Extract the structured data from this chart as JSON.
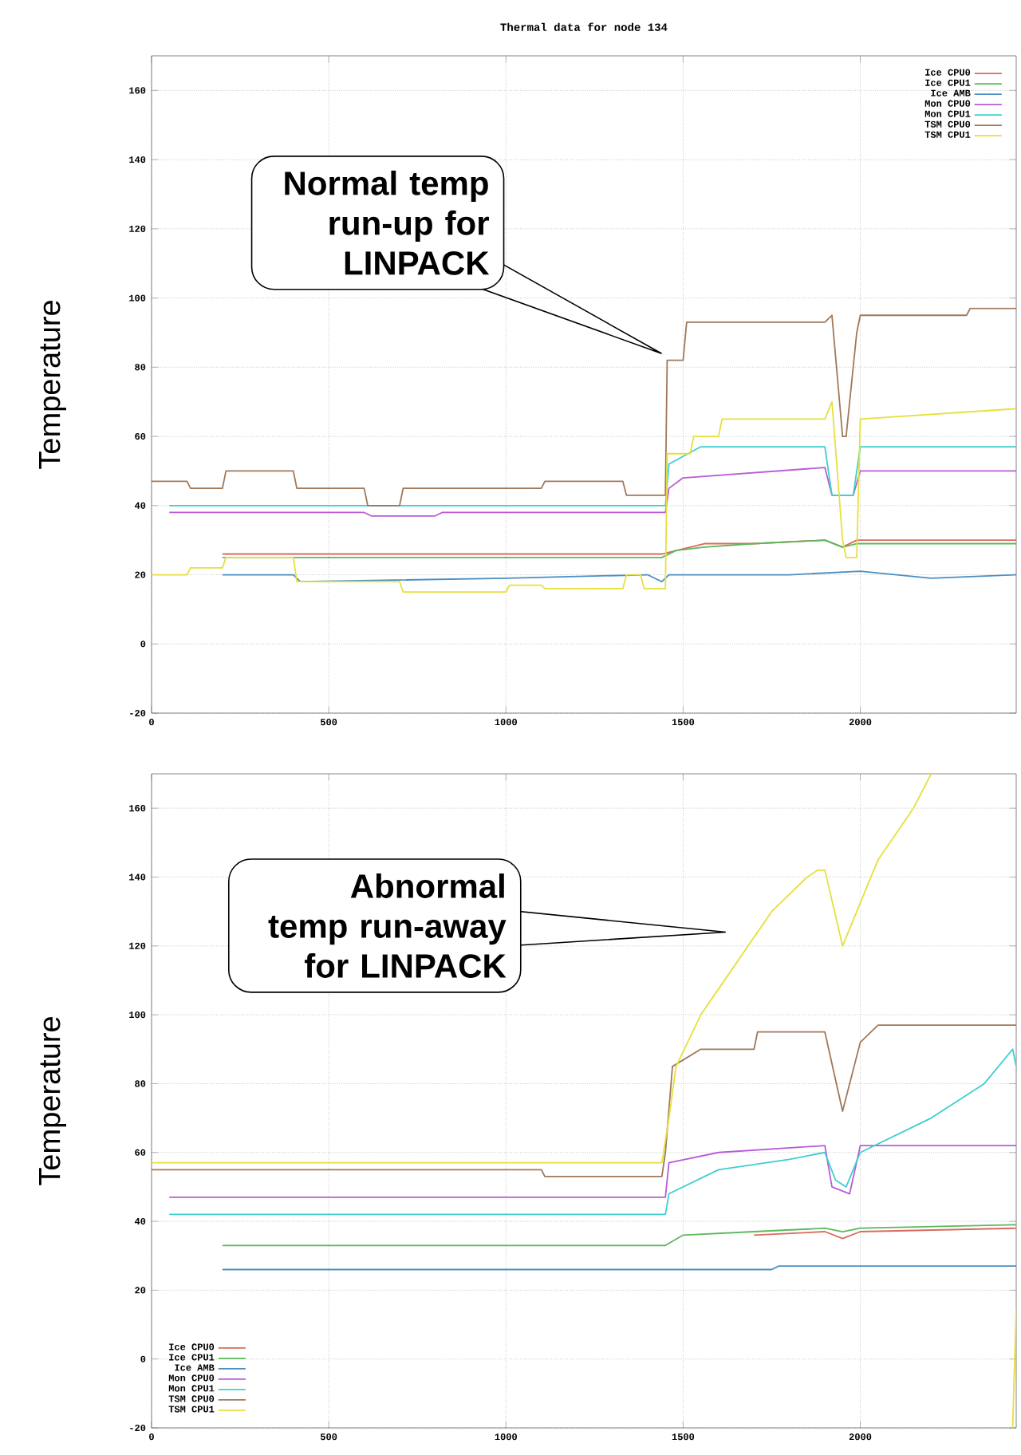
{
  "chart_data": [
    {
      "type": "line",
      "title": "Thermal data for node 134",
      "ylabel": "Temperature",
      "xlim": [
        0,
        2440
      ],
      "ylim": [
        -20,
        170
      ],
      "xticks": [
        0,
        500,
        1000,
        1500,
        2000
      ],
      "yticks": [
        -20,
        0,
        20,
        40,
        60,
        80,
        100,
        120,
        140,
        160
      ],
      "grid": true,
      "legend": "top right",
      "annotations": [
        "Normal temp run-up for LINPACK"
      ],
      "series": [
        {
          "name": "Ice CPU0",
          "color": "#d96a5a",
          "x": [
            200,
            600,
            1000,
            1440,
            1480,
            1560,
            1700,
            1900,
            1950,
            1990,
            2200,
            2440
          ],
          "values": [
            26,
            26,
            26,
            26,
            27,
            29,
            29,
            30,
            28,
            30,
            30,
            30
          ]
        },
        {
          "name": "Ice CPU1",
          "color": "#5cb85c",
          "x": [
            200,
            600,
            1000,
            1440,
            1480,
            1560,
            1700,
            1900,
            1950,
            1990,
            2200,
            2440
          ],
          "values": [
            25,
            25,
            25,
            25,
            27,
            28,
            29,
            30,
            28,
            29,
            29,
            29
          ]
        },
        {
          "name": "Ice AMB",
          "color": "#4a8fc4",
          "x": [
            200,
            400,
            420,
            1000,
            1400,
            1440,
            1460,
            1500,
            1800,
            2000,
            2200,
            2440
          ],
          "values": [
            20,
            20,
            18,
            19,
            20,
            18,
            20,
            20,
            20,
            21,
            19,
            20
          ]
        },
        {
          "name": "Mon CPU0",
          "color": "#b85cd6",
          "x": [
            50,
            600,
            620,
            800,
            820,
            1450,
            1460,
            1500,
            1900,
            1920,
            1980,
            2000,
            2440
          ],
          "values": [
            38,
            38,
            37,
            37,
            38,
            38,
            45,
            48,
            51,
            43,
            43,
            50,
            50
          ]
        },
        {
          "name": "Mon CPU1",
          "color": "#3dcfcf",
          "x": [
            50,
            1450,
            1460,
            1550,
            1900,
            1920,
            1980,
            2000,
            2440
          ],
          "values": [
            40,
            40,
            52,
            57,
            57,
            43,
            43,
            57,
            57
          ]
        },
        {
          "name": "TSM CPU0",
          "color": "#a0785a",
          "x": [
            0,
            100,
            110,
            200,
            210,
            400,
            410,
            600,
            610,
            700,
            710,
            1100,
            1110,
            1330,
            1340,
            1450,
            1455,
            1500,
            1510,
            1900,
            1920,
            1950,
            1960,
            1990,
            2000,
            2300,
            2310,
            2440
          ],
          "values": [
            47,
            47,
            45,
            45,
            50,
            50,
            45,
            45,
            40,
            40,
            45,
            45,
            47,
            47,
            43,
            43,
            82,
            82,
            93,
            93,
            95,
            60,
            60,
            90,
            95,
            95,
            97,
            97
          ]
        },
        {
          "name": "TSM CPU1",
          "color": "#e6e03c",
          "x": [
            0,
            100,
            110,
            200,
            210,
            400,
            410,
            700,
            710,
            1000,
            1010,
            1100,
            1110,
            1330,
            1340,
            1380,
            1390,
            1450,
            1455,
            1520,
            1530,
            1600,
            1610,
            1900,
            1920,
            1950,
            1960,
            1990,
            2000,
            2440
          ],
          "values": [
            20,
            20,
            22,
            22,
            25,
            25,
            18,
            18,
            15,
            15,
            17,
            17,
            16,
            16,
            20,
            20,
            16,
            16,
            55,
            55,
            60,
            60,
            65,
            65,
            70,
            30,
            25,
            25,
            65,
            68
          ]
        }
      ]
    },
    {
      "type": "line",
      "ylabel": "Temperature",
      "xlim": [
        0,
        2440
      ],
      "ylim": [
        -20,
        170
      ],
      "xticks": [
        0,
        500,
        1000,
        1500,
        2000
      ],
      "yticks": [
        -20,
        0,
        20,
        40,
        60,
        80,
        100,
        120,
        140,
        160
      ],
      "grid": true,
      "legend": "bottom left",
      "annotations": [
        "Abnormal temp run-away for LINPACK"
      ],
      "series": [
        {
          "name": "Ice CPU0",
          "color": "#d96a5a",
          "x": [
            1700,
            1900,
            1950,
            2000,
            2440
          ],
          "values": [
            36,
            37,
            35,
            37,
            38
          ]
        },
        {
          "name": "Ice CPU1",
          "color": "#5cb85c",
          "x": [
            200,
            1450,
            1500,
            1700,
            1900,
            1950,
            2000,
            2440
          ],
          "values": [
            33,
            33,
            36,
            37,
            38,
            37,
            38,
            39
          ]
        },
        {
          "name": "Ice AMB",
          "color": "#4a8fc4",
          "x": [
            200,
            1750,
            1770,
            2440
          ],
          "values": [
            26,
            26,
            27,
            27
          ]
        },
        {
          "name": "Mon CPU0",
          "color": "#b85cd6",
          "x": [
            50,
            1450,
            1460,
            1600,
            1900,
            1920,
            1970,
            2000,
            2440
          ],
          "values": [
            47,
            47,
            57,
            60,
            62,
            50,
            48,
            62,
            62
          ]
        },
        {
          "name": "Mon CPU1",
          "color": "#3dcfcf",
          "x": [
            50,
            1450,
            1460,
            1600,
            1800,
            1900,
            1930,
            1960,
            2000,
            2200,
            2350,
            2430,
            2440
          ],
          "values": [
            42,
            42,
            48,
            55,
            58,
            60,
            52,
            50,
            60,
            70,
            80,
            90,
            85
          ]
        },
        {
          "name": "TSM CPU0",
          "color": "#a0785a",
          "x": [
            0,
            1100,
            1110,
            1440,
            1450,
            1470,
            1550,
            1700,
            1710,
            1900,
            1950,
            2000,
            2050,
            2440
          ],
          "values": [
            55,
            55,
            53,
            53,
            60,
            85,
            90,
            90,
            95,
            95,
            72,
            92,
            97,
            97
          ]
        },
        {
          "name": "TSM CPU1",
          "color": "#e6e03c",
          "x": [
            0,
            1100,
            1110,
            1440,
            1460,
            1480,
            1550,
            1650,
            1750,
            1850,
            1880,
            1900,
            1950,
            2050,
            2150,
            2200,
            2300,
            2430,
            2440
          ],
          "values": [
            57,
            57,
            57,
            57,
            70,
            85,
            100,
            115,
            130,
            140,
            142,
            142,
            120,
            145,
            160,
            170,
            null,
            -20,
            15
          ]
        }
      ]
    }
  ]
}
